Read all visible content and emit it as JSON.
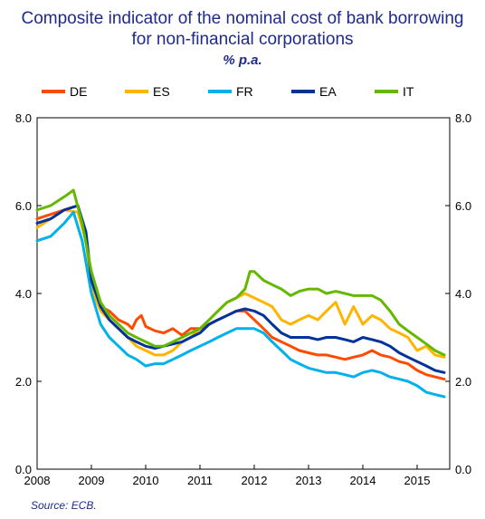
{
  "chart_data": {
    "type": "line",
    "title_line1": "Composite indicator of the nominal cost of bank borrowing",
    "title_line2": "for non-financial corporations",
    "subtitle": "% p.a.",
    "source": "Source: ECB.",
    "ylim": [
      0.0,
      8.0
    ],
    "yticks": [
      "0.0",
      "2.0",
      "4.0",
      "6.0",
      "8.0"
    ],
    "xlim": [
      2008.0,
      2015.6
    ],
    "xticks": [
      "2008",
      "2009",
      "2010",
      "2011",
      "2012",
      "2013",
      "2014",
      "2015"
    ],
    "legend_position": "top-center",
    "grid": false,
    "series": [
      {
        "name": "DE",
        "color": "#ff4b00",
        "points": [
          [
            2008.0,
            5.7
          ],
          [
            2008.25,
            5.8
          ],
          [
            2008.5,
            5.9
          ],
          [
            2008.75,
            6.0
          ],
          [
            2008.9,
            5.3
          ],
          [
            2009.0,
            4.2
          ],
          [
            2009.17,
            3.7
          ],
          [
            2009.33,
            3.6
          ],
          [
            2009.5,
            3.4
          ],
          [
            2009.67,
            3.3
          ],
          [
            2009.75,
            3.2
          ],
          [
            2009.83,
            3.4
          ],
          [
            2009.92,
            3.5
          ],
          [
            2010.0,
            3.25
          ],
          [
            2010.17,
            3.15
          ],
          [
            2010.33,
            3.1
          ],
          [
            2010.5,
            3.2
          ],
          [
            2010.67,
            3.05
          ],
          [
            2010.83,
            3.2
          ],
          [
            2011.0,
            3.2
          ],
          [
            2011.17,
            3.3
          ],
          [
            2011.33,
            3.4
          ],
          [
            2011.5,
            3.5
          ],
          [
            2011.67,
            3.6
          ],
          [
            2011.83,
            3.6
          ],
          [
            2012.0,
            3.4
          ],
          [
            2012.17,
            3.2
          ],
          [
            2012.33,
            3.0
          ],
          [
            2012.5,
            2.9
          ],
          [
            2012.67,
            2.8
          ],
          [
            2012.83,
            2.7
          ],
          [
            2013.0,
            2.65
          ],
          [
            2013.17,
            2.6
          ],
          [
            2013.33,
            2.6
          ],
          [
            2013.5,
            2.55
          ],
          [
            2013.67,
            2.5
          ],
          [
            2013.83,
            2.55
          ],
          [
            2014.0,
            2.6
          ],
          [
            2014.17,
            2.7
          ],
          [
            2014.33,
            2.6
          ],
          [
            2014.5,
            2.55
          ],
          [
            2014.67,
            2.45
          ],
          [
            2014.83,
            2.4
          ],
          [
            2015.0,
            2.25
          ],
          [
            2015.17,
            2.15
          ],
          [
            2015.33,
            2.1
          ],
          [
            2015.5,
            2.05
          ]
        ]
      },
      {
        "name": "ES",
        "color": "#ffb400",
        "points": [
          [
            2008.0,
            5.5
          ],
          [
            2008.25,
            5.7
          ],
          [
            2008.5,
            5.9
          ],
          [
            2008.75,
            5.85
          ],
          [
            2008.9,
            5.2
          ],
          [
            2009.0,
            4.1
          ],
          [
            2009.17,
            3.6
          ],
          [
            2009.33,
            3.4
          ],
          [
            2009.5,
            3.2
          ],
          [
            2009.67,
            3.0
          ],
          [
            2009.83,
            2.8
          ],
          [
            2010.0,
            2.7
          ],
          [
            2010.17,
            2.6
          ],
          [
            2010.33,
            2.6
          ],
          [
            2010.5,
            2.7
          ],
          [
            2010.67,
            2.9
          ],
          [
            2010.83,
            3.0
          ],
          [
            2011.0,
            3.2
          ],
          [
            2011.17,
            3.4
          ],
          [
            2011.33,
            3.6
          ],
          [
            2011.5,
            3.8
          ],
          [
            2011.67,
            3.9
          ],
          [
            2011.83,
            4.0
          ],
          [
            2012.0,
            3.9
          ],
          [
            2012.17,
            3.8
          ],
          [
            2012.33,
            3.7
          ],
          [
            2012.5,
            3.4
          ],
          [
            2012.67,
            3.3
          ],
          [
            2012.83,
            3.4
          ],
          [
            2013.0,
            3.5
          ],
          [
            2013.17,
            3.4
          ],
          [
            2013.33,
            3.6
          ],
          [
            2013.5,
            3.8
          ],
          [
            2013.67,
            3.3
          ],
          [
            2013.83,
            3.7
          ],
          [
            2014.0,
            3.3
          ],
          [
            2014.17,
            3.5
          ],
          [
            2014.33,
            3.4
          ],
          [
            2014.5,
            3.2
          ],
          [
            2014.67,
            3.1
          ],
          [
            2014.83,
            3.0
          ],
          [
            2015.0,
            2.7
          ],
          [
            2015.17,
            2.8
          ],
          [
            2015.33,
            2.6
          ],
          [
            2015.5,
            2.55
          ]
        ]
      },
      {
        "name": "FR",
        "color": "#00b1ea",
        "points": [
          [
            2008.0,
            5.2
          ],
          [
            2008.25,
            5.3
          ],
          [
            2008.5,
            5.6
          ],
          [
            2008.67,
            5.85
          ],
          [
            2008.83,
            5.2
          ],
          [
            2009.0,
            4.0
          ],
          [
            2009.17,
            3.3
          ],
          [
            2009.33,
            3.0
          ],
          [
            2009.5,
            2.8
          ],
          [
            2009.67,
            2.6
          ],
          [
            2009.83,
            2.5
          ],
          [
            2010.0,
            2.35
          ],
          [
            2010.17,
            2.4
          ],
          [
            2010.33,
            2.4
          ],
          [
            2010.5,
            2.5
          ],
          [
            2010.67,
            2.6
          ],
          [
            2010.83,
            2.7
          ],
          [
            2011.0,
            2.8
          ],
          [
            2011.17,
            2.9
          ],
          [
            2011.33,
            3.0
          ],
          [
            2011.5,
            3.1
          ],
          [
            2011.67,
            3.2
          ],
          [
            2011.83,
            3.2
          ],
          [
            2012.0,
            3.2
          ],
          [
            2012.17,
            3.1
          ],
          [
            2012.33,
            2.9
          ],
          [
            2012.5,
            2.7
          ],
          [
            2012.67,
            2.5
          ],
          [
            2012.83,
            2.4
          ],
          [
            2013.0,
            2.3
          ],
          [
            2013.17,
            2.25
          ],
          [
            2013.33,
            2.2
          ],
          [
            2013.5,
            2.2
          ],
          [
            2013.67,
            2.15
          ],
          [
            2013.83,
            2.1
          ],
          [
            2014.0,
            2.2
          ],
          [
            2014.17,
            2.25
          ],
          [
            2014.33,
            2.2
          ],
          [
            2014.5,
            2.1
          ],
          [
            2014.67,
            2.05
          ],
          [
            2014.83,
            2.0
          ],
          [
            2015.0,
            1.9
          ],
          [
            2015.17,
            1.75
          ],
          [
            2015.33,
            1.7
          ],
          [
            2015.5,
            1.65
          ]
        ]
      },
      {
        "name": "EA",
        "color": "#003299",
        "points": [
          [
            2008.0,
            5.6
          ],
          [
            2008.25,
            5.7
          ],
          [
            2008.5,
            5.9
          ],
          [
            2008.75,
            6.0
          ],
          [
            2008.9,
            5.4
          ],
          [
            2009.0,
            4.3
          ],
          [
            2009.17,
            3.7
          ],
          [
            2009.33,
            3.4
          ],
          [
            2009.5,
            3.2
          ],
          [
            2009.67,
            3.0
          ],
          [
            2009.83,
            2.9
          ],
          [
            2010.0,
            2.8
          ],
          [
            2010.17,
            2.75
          ],
          [
            2010.33,
            2.8
          ],
          [
            2010.5,
            2.85
          ],
          [
            2010.67,
            2.9
          ],
          [
            2010.83,
            3.0
          ],
          [
            2011.0,
            3.1
          ],
          [
            2011.17,
            3.3
          ],
          [
            2011.33,
            3.4
          ],
          [
            2011.5,
            3.5
          ],
          [
            2011.67,
            3.6
          ],
          [
            2011.83,
            3.65
          ],
          [
            2012.0,
            3.6
          ],
          [
            2012.17,
            3.5
          ],
          [
            2012.33,
            3.3
          ],
          [
            2012.5,
            3.1
          ],
          [
            2012.67,
            3.0
          ],
          [
            2012.83,
            3.0
          ],
          [
            2013.0,
            3.0
          ],
          [
            2013.17,
            2.95
          ],
          [
            2013.33,
            3.0
          ],
          [
            2013.5,
            3.0
          ],
          [
            2013.67,
            2.95
          ],
          [
            2013.83,
            2.9
          ],
          [
            2014.0,
            3.0
          ],
          [
            2014.17,
            2.95
          ],
          [
            2014.33,
            2.9
          ],
          [
            2014.5,
            2.8
          ],
          [
            2014.67,
            2.65
          ],
          [
            2014.83,
            2.55
          ],
          [
            2015.0,
            2.45
          ],
          [
            2015.17,
            2.35
          ],
          [
            2015.33,
            2.25
          ],
          [
            2015.5,
            2.2
          ]
        ]
      },
      {
        "name": "IT",
        "color": "#65b800",
        "points": [
          [
            2008.0,
            5.9
          ],
          [
            2008.25,
            6.0
          ],
          [
            2008.5,
            6.2
          ],
          [
            2008.67,
            6.35
          ],
          [
            2008.83,
            5.6
          ],
          [
            2009.0,
            4.5
          ],
          [
            2009.17,
            3.8
          ],
          [
            2009.33,
            3.5
          ],
          [
            2009.5,
            3.3
          ],
          [
            2009.67,
            3.1
          ],
          [
            2009.83,
            3.0
          ],
          [
            2010.0,
            2.9
          ],
          [
            2010.17,
            2.8
          ],
          [
            2010.33,
            2.8
          ],
          [
            2010.5,
            2.9
          ],
          [
            2010.67,
            3.0
          ],
          [
            2010.83,
            3.1
          ],
          [
            2011.0,
            3.2
          ],
          [
            2011.17,
            3.4
          ],
          [
            2011.33,
            3.6
          ],
          [
            2011.5,
            3.8
          ],
          [
            2011.67,
            3.9
          ],
          [
            2011.83,
            4.1
          ],
          [
            2011.92,
            4.5
          ],
          [
            2012.0,
            4.5
          ],
          [
            2012.17,
            4.3
          ],
          [
            2012.33,
            4.2
          ],
          [
            2012.5,
            4.1
          ],
          [
            2012.67,
            3.95
          ],
          [
            2012.83,
            4.05
          ],
          [
            2013.0,
            4.1
          ],
          [
            2013.17,
            4.1
          ],
          [
            2013.33,
            4.0
          ],
          [
            2013.5,
            4.05
          ],
          [
            2013.67,
            4.0
          ],
          [
            2013.83,
            3.95
          ],
          [
            2014.0,
            3.95
          ],
          [
            2014.17,
            3.95
          ],
          [
            2014.33,
            3.85
          ],
          [
            2014.5,
            3.6
          ],
          [
            2014.67,
            3.3
          ],
          [
            2014.83,
            3.15
          ],
          [
            2015.0,
            3.0
          ],
          [
            2015.17,
            2.85
          ],
          [
            2015.33,
            2.7
          ],
          [
            2015.5,
            2.6
          ]
        ]
      }
    ]
  }
}
